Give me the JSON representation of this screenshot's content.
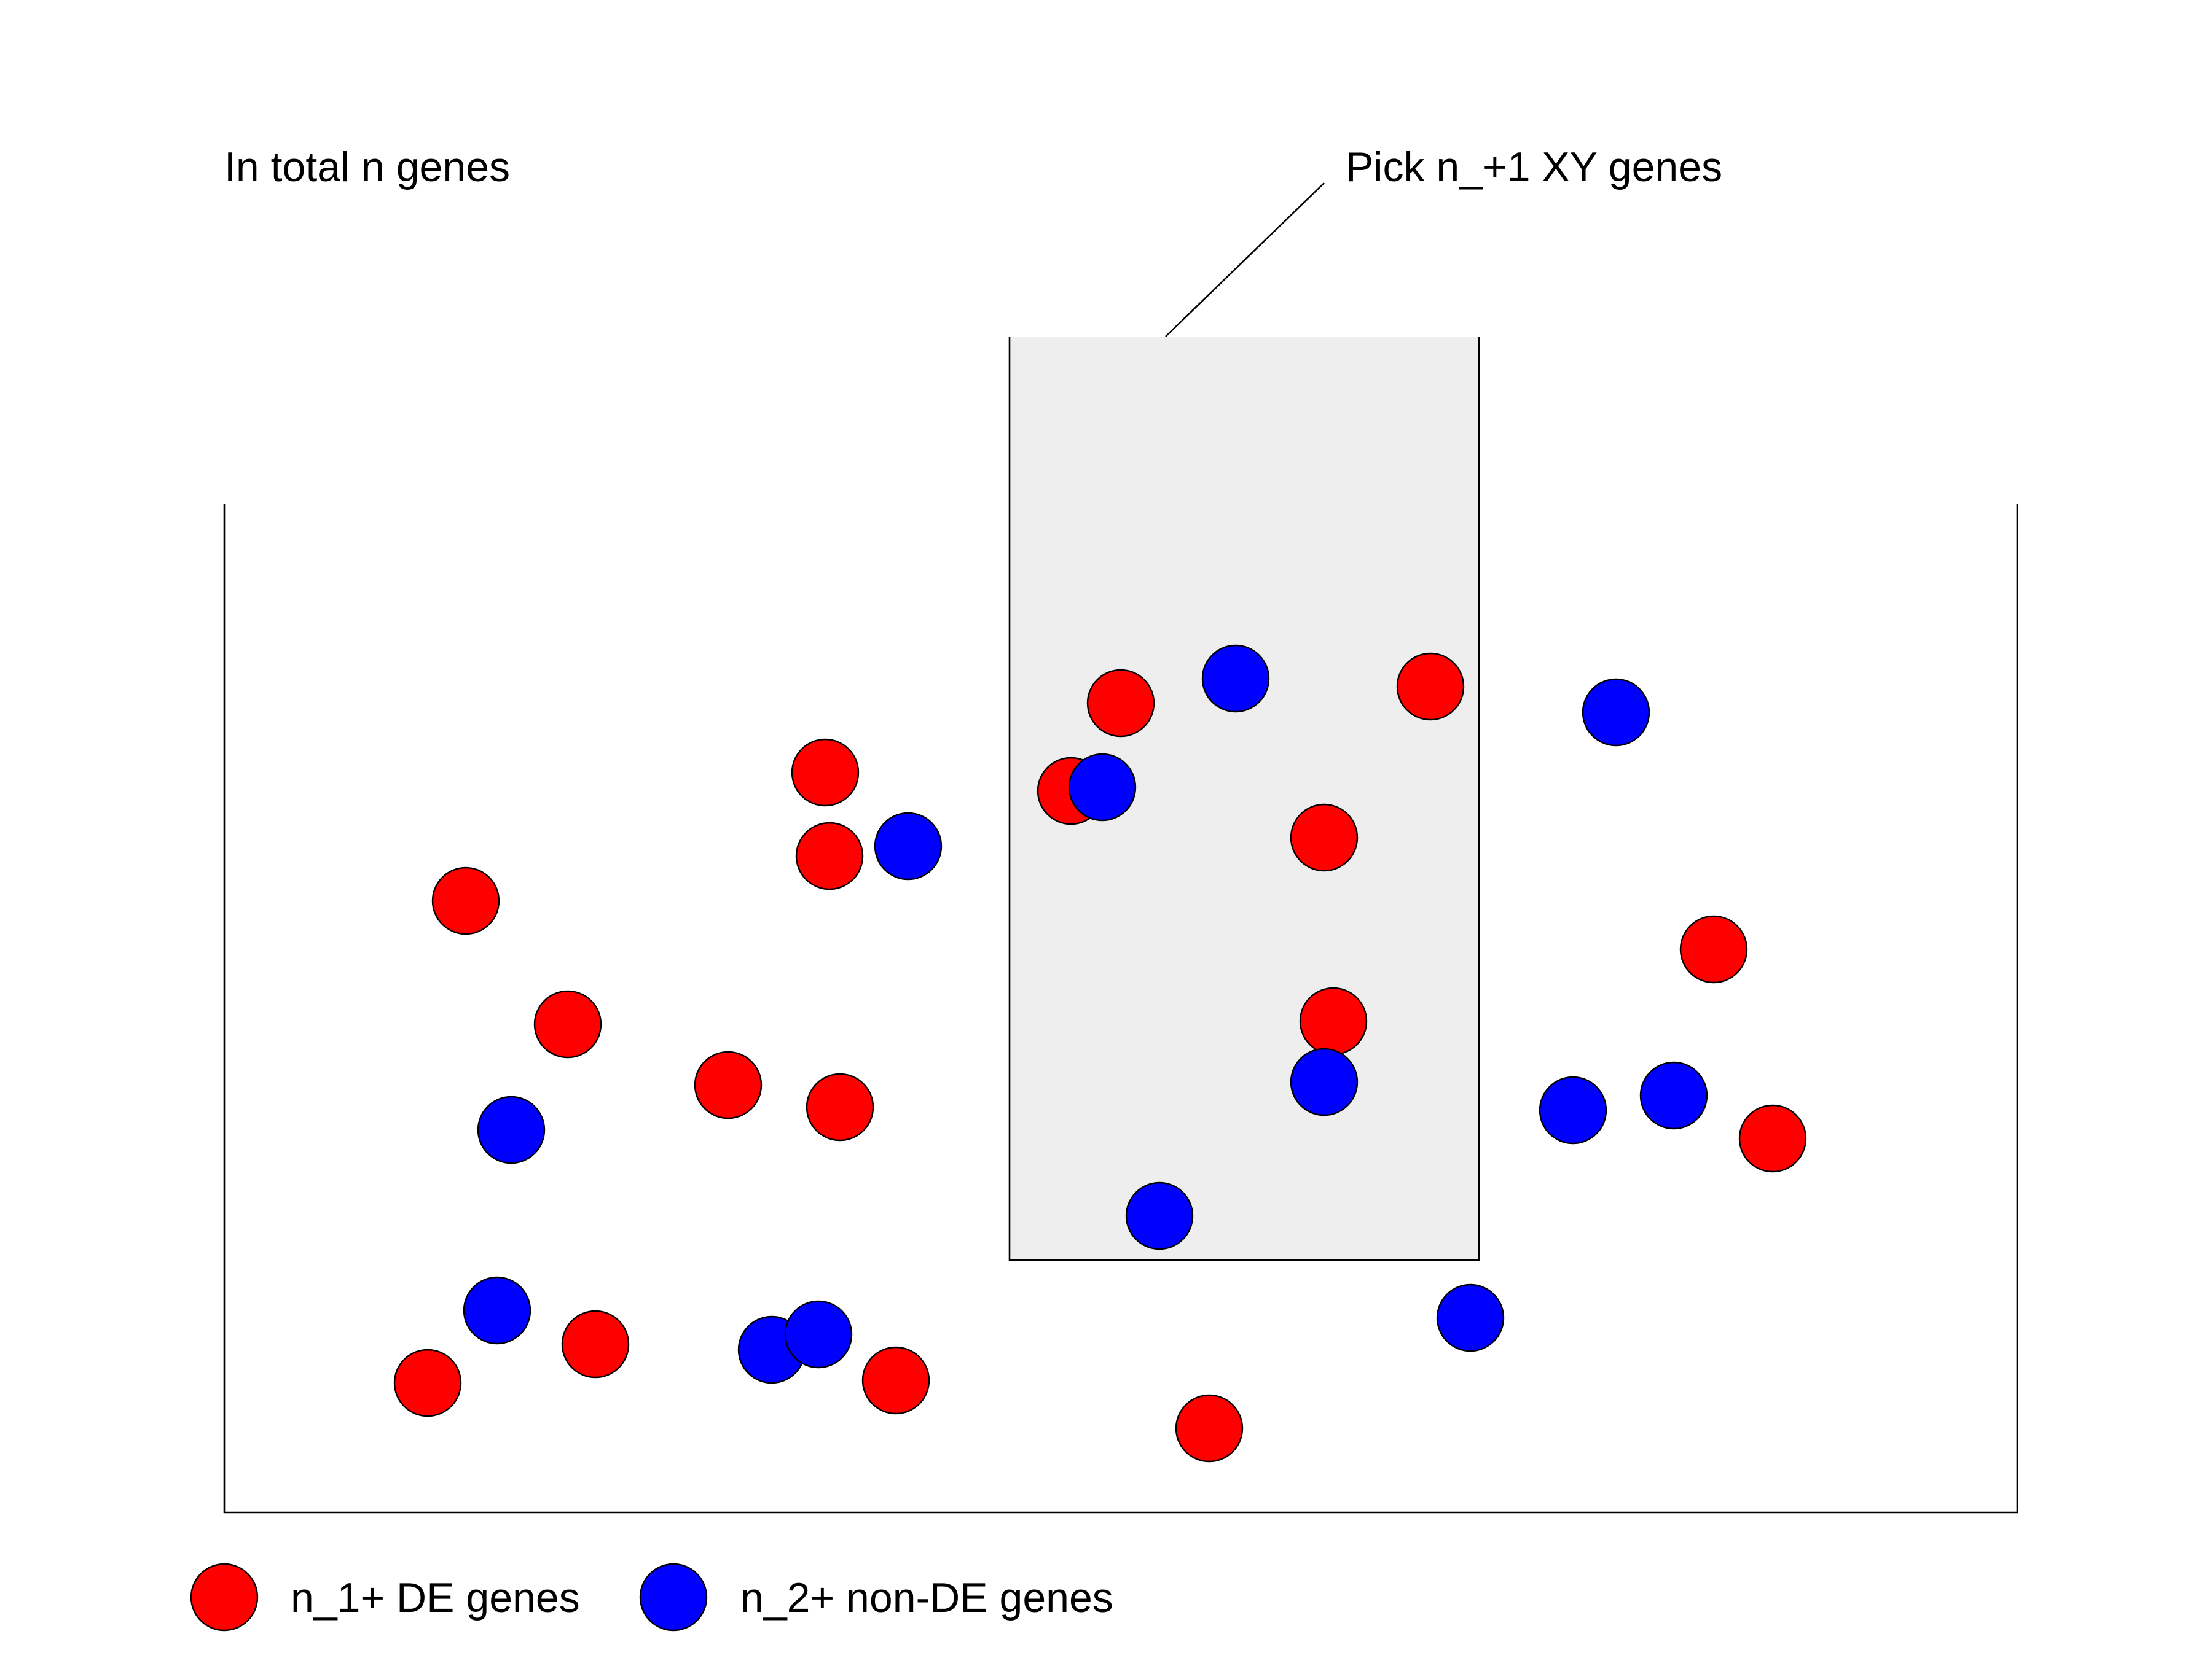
{
  "labels": {
    "total": "In total n genes",
    "pick": "Pick n_+1 XY genes"
  },
  "legend": {
    "de_label": "n_1+ DE genes",
    "non_de_label": "n_2+ non-DE genes"
  },
  "colors": {
    "de": "#ff0000",
    "non_de": "#0000ff",
    "selection_fill": "#eeeeee",
    "outline": "#000000",
    "background": "#ffffff"
  }
}
